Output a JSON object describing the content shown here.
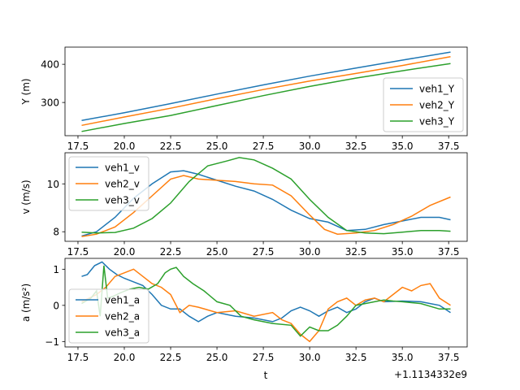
{
  "figure": {
    "offset_text": "+1.1134332e9"
  },
  "chart_data": [
    {
      "type": "line",
      "ylabel": "Y (m)",
      "xlabel": "",
      "xlim": [
        16.8,
        38.5
      ],
      "ylim": [
        213,
        445
      ],
      "x_ticks": [
        17.5,
        20.0,
        22.5,
        25.0,
        27.5,
        30.0,
        32.5,
        35.0,
        37.5
      ],
      "x_tick_labels": [
        "17.5",
        "20.0",
        "22.5",
        "25.0",
        "27.5",
        "30.0",
        "32.5",
        "35.0",
        "37.5"
      ],
      "y_ticks": [
        300,
        400
      ],
      "y_tick_labels": [
        "300",
        "400"
      ],
      "legend_position": "lower right",
      "series": [
        {
          "name": "veh1_Y",
          "color": "#1f77b4",
          "x": [
            17.7,
            20.0,
            22.5,
            25.0,
            27.5,
            30.0,
            32.5,
            35.0,
            37.6
          ],
          "y": [
            253,
            273,
            297,
            322,
            346,
            369,
            390,
            411,
            432
          ]
        },
        {
          "name": "veh2_Y",
          "color": "#ff7f0e",
          "x": [
            17.7,
            20.0,
            22.5,
            25.0,
            27.5,
            30.0,
            32.5,
            35.0,
            37.6
          ],
          "y": [
            240,
            262,
            285,
            310,
            334,
            356,
            376,
            397,
            420
          ]
        },
        {
          "name": "veh3_Y",
          "color": "#2ca02c",
          "x": [
            17.7,
            20.0,
            22.5,
            25.0,
            27.5,
            30.0,
            32.5,
            35.0,
            37.6
          ],
          "y": [
            224,
            245,
            266,
            292,
            318,
            342,
            364,
            383,
            402
          ]
        }
      ]
    },
    {
      "type": "line",
      "ylabel": "v (m/s)",
      "xlabel": "",
      "xlim": [
        16.8,
        38.5
      ],
      "ylim": [
        7.6,
        11.3
      ],
      "x_ticks": [
        17.5,
        20.0,
        22.5,
        25.0,
        27.5,
        30.0,
        32.5,
        35.0,
        37.5
      ],
      "x_tick_labels": [
        "17.5",
        "20.0",
        "22.5",
        "25.0",
        "27.5",
        "30.0",
        "32.5",
        "35.0",
        "37.5"
      ],
      "y_ticks": [
        8,
        10
      ],
      "y_tick_labels": [
        "8",
        "10"
      ],
      "legend_position": "upper left",
      "series": [
        {
          "name": "veh1_v",
          "color": "#1f77b4",
          "x": [
            17.7,
            18.5,
            19.5,
            20.5,
            21.5,
            22.5,
            23.2,
            24.0,
            25.0,
            26.0,
            27.0,
            28.0,
            29.0,
            30.0,
            31.0,
            32.0,
            33.0,
            34.0,
            35.0,
            36.0,
            37.0,
            37.6
          ],
          "y": [
            7.82,
            8.0,
            8.6,
            9.4,
            10.0,
            10.5,
            10.55,
            10.4,
            10.15,
            9.9,
            9.7,
            9.35,
            8.9,
            8.55,
            8.4,
            8.05,
            8.1,
            8.3,
            8.45,
            8.6,
            8.6,
            8.5
          ]
        },
        {
          "name": "veh2_v",
          "color": "#ff7f0e",
          "x": [
            17.7,
            18.5,
            19.5,
            20.5,
            21.5,
            22.5,
            23.2,
            24.0,
            25.0,
            26.0,
            27.0,
            28.0,
            29.0,
            30.0,
            30.8,
            31.5,
            32.5,
            33.5,
            34.5,
            35.5,
            36.5,
            37.6
          ],
          "y": [
            7.8,
            7.9,
            8.2,
            8.8,
            9.5,
            10.2,
            10.35,
            10.2,
            10.15,
            10.1,
            10.0,
            9.95,
            9.5,
            8.7,
            8.1,
            7.9,
            7.95,
            8.05,
            8.3,
            8.65,
            9.1,
            9.45
          ]
        },
        {
          "name": "veh3_v",
          "color": "#2ca02c",
          "x": [
            17.7,
            18.5,
            19.5,
            20.5,
            21.5,
            22.5,
            23.5,
            24.5,
            25.5,
            26.2,
            27.0,
            28.0,
            29.0,
            30.0,
            31.0,
            32.0,
            33.0,
            34.0,
            35.0,
            36.0,
            37.0,
            37.6
          ],
          "y": [
            7.98,
            7.95,
            7.97,
            8.15,
            8.55,
            9.2,
            10.1,
            10.75,
            10.95,
            11.1,
            11.0,
            10.65,
            10.2,
            9.35,
            8.6,
            8.05,
            7.95,
            7.92,
            7.98,
            8.05,
            8.05,
            8.02
          ]
        }
      ]
    },
    {
      "type": "line",
      "ylabel": "a (m/s²)",
      "xlabel": "t",
      "xlim": [
        16.8,
        38.5
      ],
      "ylim": [
        -1.15,
        1.3
      ],
      "x_ticks": [
        17.5,
        20.0,
        22.5,
        25.0,
        27.5,
        30.0,
        32.5,
        35.0,
        37.5
      ],
      "x_tick_labels": [
        "17.5",
        "20.0",
        "22.5",
        "25.0",
        "27.5",
        "30.0",
        "32.5",
        "35.0",
        "37.5"
      ],
      "y_ticks": [
        -1,
        0,
        1
      ],
      "y_tick_labels": [
        "−1",
        "0",
        "1"
      ],
      "legend_position": "lower left",
      "series": [
        {
          "name": "veh1_a",
          "color": "#1f77b4",
          "x": [
            17.7,
            18.0,
            18.4,
            18.8,
            19.2,
            19.6,
            20.0,
            20.5,
            21.0,
            21.5,
            22.0,
            22.5,
            23.0,
            23.5,
            24.0,
            24.5,
            25.0,
            26.0,
            27.0,
            28.0,
            28.5,
            29.0,
            29.5,
            30.0,
            30.5,
            31.0,
            31.5,
            32.0,
            32.5,
            33.0,
            33.5,
            34.0,
            35.0,
            36.0,
            36.5,
            37.0,
            37.6
          ],
          "y": [
            0.8,
            0.85,
            1.1,
            1.2,
            1.0,
            0.85,
            0.75,
            0.65,
            0.55,
            0.3,
            0.0,
            -0.1,
            -0.1,
            -0.3,
            -0.45,
            -0.3,
            -0.2,
            -0.3,
            -0.35,
            -0.45,
            -0.35,
            -0.15,
            -0.05,
            -0.15,
            -0.3,
            -0.15,
            -0.05,
            -0.2,
            -0.1,
            0.1,
            0.2,
            0.1,
            0.12,
            0.1,
            0.05,
            0.0,
            -0.2
          ]
        },
        {
          "name": "veh2_a",
          "color": "#ff7f0e",
          "x": [
            17.7,
            18.5,
            19.0,
            19.5,
            20.0,
            20.5,
            21.0,
            21.5,
            22.0,
            22.5,
            23.0,
            23.5,
            24.0,
            25.0,
            26.0,
            27.0,
            28.0,
            28.5,
            29.0,
            29.5,
            30.0,
            30.5,
            31.0,
            31.5,
            32.0,
            32.5,
            33.0,
            33.5,
            34.0,
            34.5,
            35.0,
            35.5,
            36.0,
            36.5,
            37.0,
            37.6
          ],
          "y": [
            0.1,
            0.3,
            0.5,
            0.8,
            0.9,
            1.0,
            0.8,
            0.6,
            0.5,
            0.3,
            -0.2,
            0.0,
            -0.05,
            -0.2,
            -0.15,
            -0.3,
            -0.2,
            -0.4,
            -0.5,
            -0.8,
            -1.0,
            -0.7,
            -0.1,
            0.1,
            0.2,
            0.0,
            0.15,
            0.2,
            0.1,
            0.3,
            0.5,
            0.4,
            0.55,
            0.6,
            0.2,
            0.0
          ]
        },
        {
          "name": "veh3_a",
          "color": "#2ca02c",
          "x": [
            17.7,
            18.2,
            18.5,
            18.7,
            18.9,
            19.1,
            19.4,
            19.8,
            20.3,
            20.8,
            21.3,
            21.8,
            22.2,
            22.5,
            22.8,
            23.2,
            23.7,
            24.3,
            25.0,
            25.7,
            26.3,
            27.0,
            28.0,
            29.0,
            29.5,
            30.0,
            30.5,
            31.0,
            31.5,
            32.0,
            32.5,
            33.0,
            33.5,
            34.0,
            34.5,
            35.0,
            36.0,
            37.0,
            37.6
          ],
          "y": [
            0.05,
            0.2,
            0.4,
            -0.3,
            1.1,
            0.2,
            0.25,
            0.35,
            0.45,
            0.5,
            0.45,
            0.6,
            0.9,
            1.0,
            1.05,
            0.8,
            0.6,
            0.4,
            0.1,
            0.0,
            -0.3,
            -0.4,
            -0.5,
            -0.55,
            -0.85,
            -0.6,
            -0.7,
            -0.7,
            -0.55,
            -0.3,
            0.0,
            0.05,
            0.1,
            0.15,
            0.12,
            0.1,
            0.05,
            -0.1,
            -0.1
          ]
        }
      ]
    }
  ]
}
